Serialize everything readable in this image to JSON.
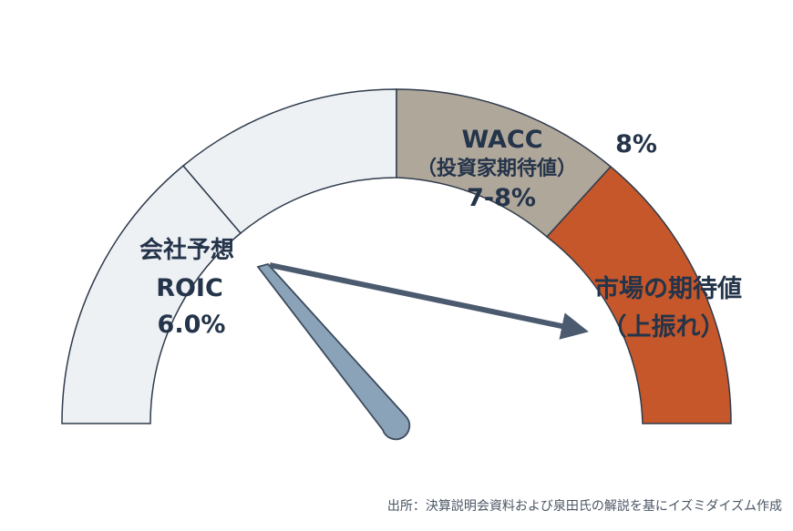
{
  "diagram": {
    "zones": [
      {
        "id": "roic-zone",
        "lines": [
          "会社予想",
          "ROIC",
          "6.0%"
        ],
        "color": "#eef1f4"
      },
      {
        "id": "upper-zone",
        "lines": [],
        "color": "#eef1f4"
      },
      {
        "id": "wacc-zone",
        "lines": [
          "WACC",
          "（投資家期待値）",
          "7-8%"
        ],
        "color": "#b0a79b"
      },
      {
        "id": "market-zone",
        "lines": [
          "市場の期待値",
          "（上振れ）"
        ],
        "color": "#c5572a"
      }
    ],
    "threshold_label": "8%",
    "needle_color": "#8aa3b8",
    "arrow_color": "#4b5a6e",
    "outline_color": "#2f3b4c"
  },
  "source": "出所：決算説明会資料および泉田氏の解説を基にイズミダイズム作成"
}
